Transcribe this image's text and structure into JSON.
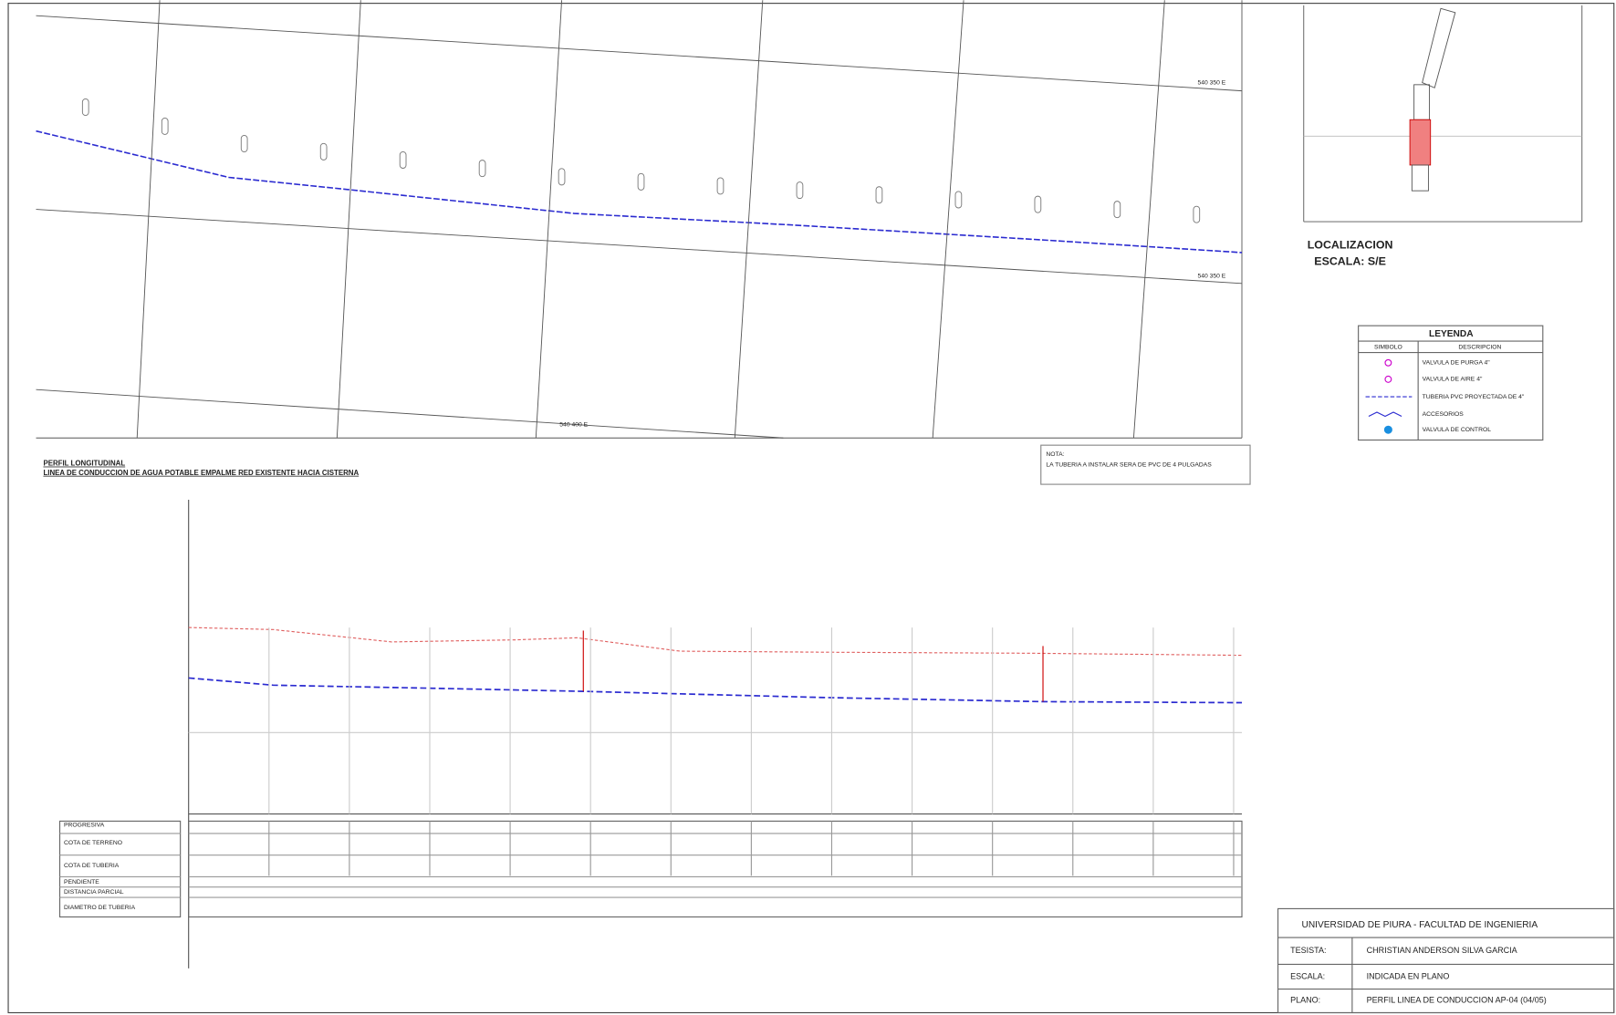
{
  "plan": {
    "grid_labels": [
      "540 350 E",
      "540 350 E",
      "540 400 E"
    ]
  },
  "location": {
    "title": "LOCALIZACION",
    "scale": "ESCALA: S/E"
  },
  "legend": {
    "title": "LEYENDA",
    "headers": [
      "SIMBOLO",
      "DESCRIPCION"
    ],
    "items": [
      "VALVULA DE PURGA 4\"",
      "VALVULA DE AIRE 4\"",
      "TUBERIA PVC PROYECTADA DE 4\"",
      "ACCESORIOS",
      "VALVULA DE CONTROL"
    ]
  },
  "note": {
    "title": "NOTA:",
    "text": "LA TUBERIA A INSTALAR SERA DE PVC DE 4 PULGADAS"
  },
  "profile": {
    "title": "PERFIL LONGITUDINAL",
    "subtitle": "LINEA DE CONDUCCION DE AGUA POTABLE EMPALME RED EXISTENTE HACIA CISTERNA",
    "row_labels": [
      "PROGRESIVA",
      "COTA DE TERRENO",
      "COTA DE TUBERIA",
      "PENDIENTE",
      "DISTANCIA PARCIAL",
      "DIAMETRO DE TUBERIA"
    ]
  },
  "title_block": {
    "institution": "UNIVERSIDAD DE PIURA - FACULTAD DE INGENIERIA",
    "rows": [
      [
        "TESISTA:",
        "CHRISTIAN ANDERSON SILVA GARCIA"
      ],
      [
        "ESCALA:",
        "INDICADA EN PLANO"
      ],
      [
        "PLANO:",
        "PERFIL LINEA DE CONDUCCION AP-04 (04/05)"
      ]
    ]
  }
}
